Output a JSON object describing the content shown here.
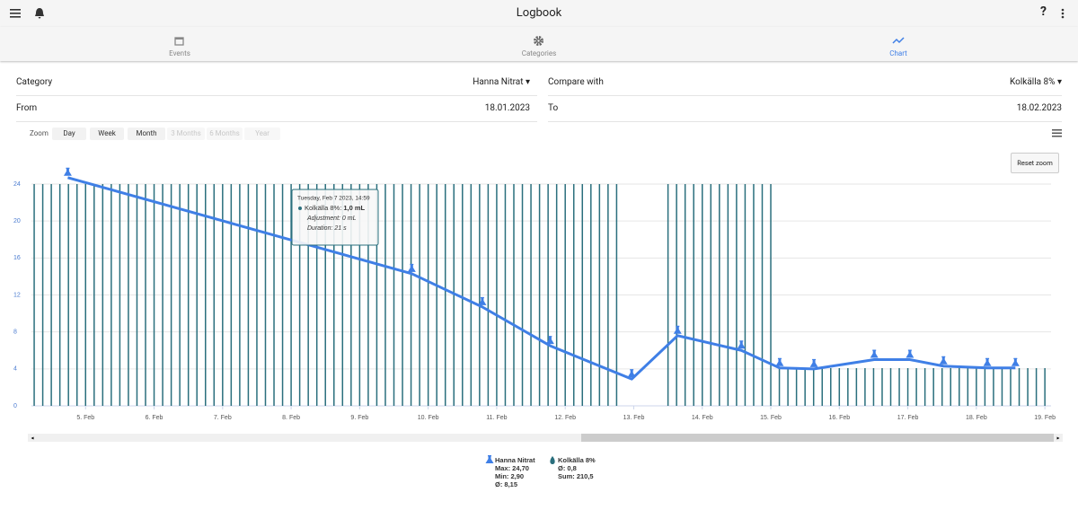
{
  "header": {
    "title": "Logbook"
  },
  "tabs": [
    "Events",
    "Categories",
    "Chart"
  ],
  "form": {
    "category_label": "Category",
    "category": "Hanna Nitrat",
    "compare_label": "Compare with",
    "compare": "Kolkälla 8%",
    "from_label": "From",
    "from": "18.01.2023",
    "to_label": "To",
    "to": "18.02.2023"
  },
  "zoom": {
    "label": "Zoom",
    "options": [
      "Day",
      "Week",
      "Month",
      "3 Months",
      "6 Months",
      "Year"
    ],
    "reset": "Reset zoom"
  },
  "chart_data": {
    "type": "line",
    "xlim": [
      4.21,
      19.09
    ],
    "xticks": [
      {
        "value": 5,
        "label": "5. Feb"
      },
      {
        "value": 6,
        "label": "6. Feb"
      },
      {
        "value": 7,
        "label": "7. Feb"
      },
      {
        "value": 8,
        "label": "8. Feb"
      },
      {
        "value": 9,
        "label": "9. Feb"
      },
      {
        "value": 10,
        "label": "10. Feb"
      },
      {
        "value": 11,
        "label": "11. Feb"
      },
      {
        "value": 12,
        "label": "12. Feb"
      },
      {
        "value": 13,
        "label": "13. Feb"
      },
      {
        "value": 14,
        "label": "14. Feb"
      },
      {
        "value": 15,
        "label": "15. Feb"
      },
      {
        "value": 16,
        "label": "16. Feb"
      },
      {
        "value": 17,
        "label": "17. Feb"
      },
      {
        "value": 18,
        "label": "18. Feb"
      },
      {
        "value": 19,
        "label": "19. Feb"
      }
    ],
    "ylim": [
      0,
      24
    ],
    "yticks": [
      0,
      4,
      8,
      12,
      16,
      20,
      24
    ],
    "y2lim": [
      0,
      1
    ],
    "grid": true,
    "series": [
      {
        "name": "Hanna Nitrat",
        "type": "line",
        "color": "#3f7fe6",
        "x": [
          4.74,
          9.76,
          10.79,
          11.78,
          12.97,
          13.64,
          14.57,
          15.13,
          15.63,
          16.51,
          17.03,
          17.52,
          18.16,
          18.57
        ],
        "values": [
          24.7,
          14.3,
          10.7,
          6.5,
          2.9,
          7.6,
          6.0,
          4.1,
          4.0,
          5.0,
          5.0,
          4.3,
          4.1,
          4.1
        ],
        "stats": [
          "Max: 24,70",
          "Min: 2,90",
          "Ø: 8,15"
        ]
      },
      {
        "name": "Kolkälla 8%",
        "type": "bar",
        "axis": "y2",
        "color": "#2a6f7d",
        "x": [
          4.25,
          4.375,
          4.5,
          4.625,
          4.75,
          4.875,
          5,
          5.125,
          5.25,
          5.375,
          5.5,
          5.625,
          5.75,
          5.875,
          6,
          6.125,
          6.25,
          6.375,
          6.5,
          6.625,
          6.75,
          6.875,
          7,
          7.125,
          7.25,
          7.375,
          7.5,
          7.625,
          7.75,
          7.875,
          8,
          8.125,
          8.25,
          8.375,
          8.5,
          8.625,
          8.75,
          8.875,
          9,
          9.125,
          9.25,
          9.375,
          9.5,
          9.625,
          9.75,
          9.875,
          10,
          10.125,
          10.25,
          10.375,
          10.5,
          10.625,
          10.75,
          10.875,
          11,
          11.125,
          11.25,
          11.375,
          11.5,
          11.625,
          11.75,
          11.875,
          12,
          12.125,
          12.25,
          12.375,
          12.5,
          12.625,
          12.75,
          13.5,
          13.625,
          13.75,
          13.875,
          14,
          14.125,
          14.25,
          14.375,
          14.5,
          14.625,
          14.75,
          14.875,
          15,
          15.125,
          15.25,
          15.375,
          15.5,
          15.625,
          15.75,
          15.875,
          16,
          16.125,
          16.25,
          16.375,
          16.5,
          16.625,
          16.75,
          16.875,
          17,
          17.125,
          17.25,
          17.375,
          17.5,
          17.625,
          17.75,
          17.875,
          18,
          18.125,
          18.25,
          18.375,
          18.5,
          18.625,
          18.75,
          18.875,
          19
        ],
        "values": [
          1,
          1,
          1,
          1,
          1,
          1,
          1,
          1,
          1,
          1,
          1,
          1,
          1,
          1,
          1,
          1,
          1,
          1,
          1,
          1,
          1,
          1,
          1,
          1,
          1,
          1,
          1,
          1,
          1,
          1,
          1,
          1,
          1,
          1,
          1,
          1,
          1,
          1,
          1,
          1,
          1,
          1,
          1,
          1,
          1,
          1,
          1,
          1,
          1,
          1,
          1,
          1,
          1,
          1,
          1,
          1,
          1,
          1,
          1,
          1,
          1,
          1,
          1,
          1,
          1,
          1,
          1,
          1,
          1,
          1,
          1,
          1,
          1,
          1,
          1,
          1,
          1,
          1,
          1,
          1,
          1,
          1,
          0.17,
          0.17,
          0.17,
          0.17,
          0.17,
          0.17,
          0.17,
          0.17,
          0.17,
          0.17,
          0.17,
          0.17,
          0.17,
          0.17,
          0.17,
          0.17,
          0.17,
          0.17,
          0.17,
          0.17,
          0.17,
          0.17,
          0.17,
          0.17,
          0.17,
          0.17,
          0.17,
          0.17,
          0.17,
          0.17,
          0.17,
          0.17
        ],
        "stats": [
          "Ø: 0,8",
          "Sum: 210,5"
        ]
      }
    ],
    "tooltip": {
      "date": "Tuesday, Feb 7 2023, 14:59",
      "series": "Kolkälla 8%: ",
      "value": "1,0 mL",
      "adjustment": "Adjustment: 0 mL",
      "duration": "Duration: 21 s"
    }
  }
}
